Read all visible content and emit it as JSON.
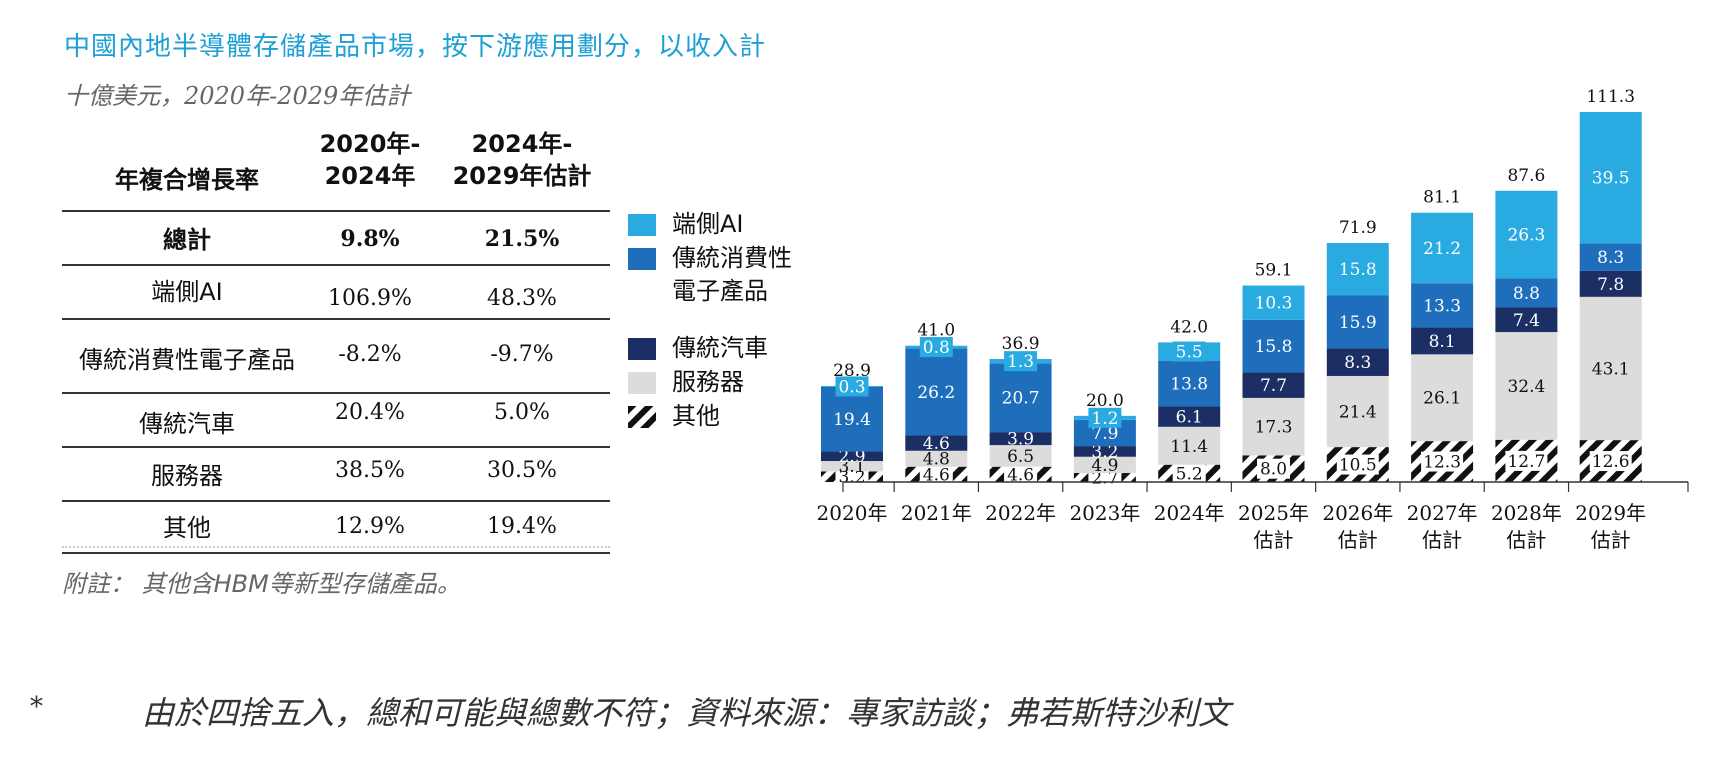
{
  "title": "中國內地半導體存儲產品市場，按下游應用劃分，以收入計",
  "subtitle": "十億美元，2020年-2029年估計",
  "table": {
    "col0": "年複合增長率",
    "col1a": "2020年-",
    "col1b": "2024年",
    "col2a": "2024年-",
    "col2b": "2029年估計",
    "rows": [
      {
        "label": "總計",
        "v1": "9.8%",
        "v2": "21.5%"
      },
      {
        "label": "端側AI",
        "v1": "106.9%",
        "v2": "48.3%"
      },
      {
        "label": "傳統消費性電子產品",
        "v1": "-8.2%",
        "v2": "-9.7%"
      },
      {
        "label": "傳統汽車",
        "v1": "20.4%",
        "v2": "5.0%"
      },
      {
        "label": "服務器",
        "v1": "38.5%",
        "v2": "30.5%"
      },
      {
        "label": "其他",
        "v1": "12.9%",
        "v2": "19.4%"
      }
    ]
  },
  "note": "附註：  其他含HBM等新型存儲產品。",
  "footnote_mark": "*",
  "footnote": "由於四捨五入，總和可能與總數不符；資料來源：專家訪談；弗若斯特沙利文",
  "legend": [
    {
      "label_lines": [
        "端側AI"
      ],
      "color": "#29aae1"
    },
    {
      "label_lines": [
        "傳統消費性",
        "電子產品"
      ],
      "color": "#1f6ebc"
    },
    {
      "label_lines": [
        "傳統汽車"
      ],
      "color": "#1c2f64"
    },
    {
      "label_lines": [
        "服務器"
      ],
      "color": "#dcdcdc"
    },
    {
      "label_lines": [
        "其他"
      ],
      "color": "pattern"
    }
  ],
  "chart_data": {
    "type": "bar",
    "stacked": true,
    "categories": [
      [
        "2020年"
      ],
      [
        "2021年"
      ],
      [
        "2022年"
      ],
      [
        "2023年"
      ],
      [
        "2024年"
      ],
      [
        "2025年",
        "估計"
      ],
      [
        "2026年",
        "估計"
      ],
      [
        "2027年",
        "估計"
      ],
      [
        "2028年",
        "估計"
      ],
      [
        "2029年",
        "估計"
      ]
    ],
    "series": [
      {
        "name": "其他",
        "color": "pattern",
        "values": [
          3.2,
          4.6,
          4.6,
          2.7,
          5.2,
          8.0,
          10.5,
          12.3,
          12.7,
          12.6
        ]
      },
      {
        "name": "服務器",
        "color": "#dcdcdc",
        "values": [
          3.1,
          4.8,
          6.5,
          4.9,
          11.4,
          17.3,
          21.4,
          26.1,
          32.4,
          43.1
        ]
      },
      {
        "name": "傳統汽車",
        "color": "#1c2f64",
        "values": [
          2.9,
          4.6,
          3.9,
          3.2,
          6.1,
          7.7,
          8.3,
          8.1,
          7.4,
          7.8
        ]
      },
      {
        "name": "傳統消費性電子產品",
        "color": "#1f6ebc",
        "values": [
          19.4,
          26.2,
          20.7,
          7.9,
          13.8,
          15.8,
          15.9,
          13.3,
          8.8,
          8.3
        ]
      },
      {
        "name": "端側AI",
        "color": "#29aae1",
        "values": [
          0.3,
          0.8,
          1.3,
          1.2,
          5.5,
          10.3,
          15.8,
          21.2,
          26.3,
          39.5
        ]
      }
    ],
    "totals": [
      28.9,
      41.0,
      36.9,
      20.0,
      42.0,
      59.1,
      71.9,
      81.1,
      87.6,
      111.3
    ],
    "ylim": [
      0,
      111.3
    ]
  }
}
